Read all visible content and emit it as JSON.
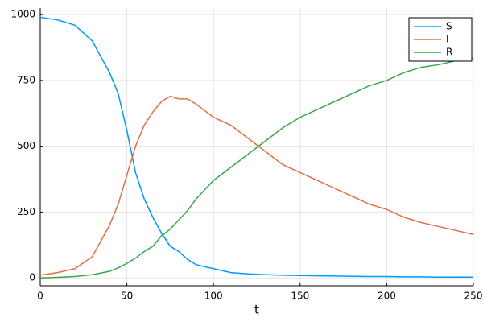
{
  "chart_data": {
    "type": "line",
    "x_label": "t",
    "x": [
      0,
      10,
      20,
      30,
      40,
      45,
      50,
      55,
      60,
      65,
      70,
      75,
      80,
      85,
      90,
      100,
      110,
      120,
      130,
      140,
      150,
      160,
      170,
      180,
      190,
      200,
      210,
      220,
      230,
      240,
      250
    ],
    "series": [
      {
        "name": "S",
        "color": "#009afa",
        "values": [
          990,
          980,
          960,
          900,
          780,
          700,
          560,
          400,
          300,
          230,
          170,
          120,
          100,
          70,
          50,
          35,
          20,
          15,
          12,
          10,
          9,
          8,
          7,
          6,
          5,
          5,
          4,
          4,
          3,
          3,
          3
        ]
      },
      {
        "name": "I",
        "color": "#e26f46",
        "values": [
          10,
          20,
          35,
          80,
          200,
          280,
          390,
          500,
          580,
          630,
          670,
          690,
          680,
          680,
          660,
          610,
          580,
          530,
          480,
          430,
          400,
          370,
          340,
          310,
          280,
          260,
          230,
          210,
          195,
          180,
          165
        ]
      },
      {
        "name": "R",
        "color": "#3da44d",
        "values": [
          0,
          2,
          5,
          12,
          25,
          38,
          55,
          75,
          100,
          120,
          160,
          185,
          220,
          255,
          300,
          370,
          420,
          470,
          520,
          570,
          610,
          640,
          670,
          700,
          730,
          750,
          780,
          800,
          810,
          825,
          835
        ]
      }
    ],
    "xlim": [
      0,
      250
    ],
    "xticks": [
      0,
      50,
      100,
      150,
      200,
      250
    ],
    "ylim": [
      -30,
      1025
    ],
    "yticks": [
      0,
      250,
      500,
      750,
      1000
    ],
    "grid": true,
    "legend": "top-right"
  }
}
